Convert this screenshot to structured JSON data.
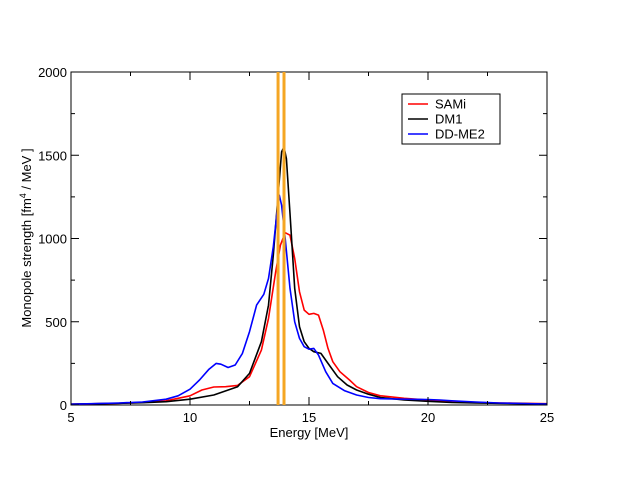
{
  "chart_data": {
    "type": "line",
    "title": "",
    "xlabel": "Energy [MeV]",
    "ylabel_prefix": "Monopole strength [fm",
    "ylabel_sup": "4",
    "ylabel_suffix": " / MeV ]",
    "xlim": [
      5,
      25
    ],
    "ylim": [
      0,
      2000
    ],
    "xticks": [
      5,
      10,
      15,
      20,
      25
    ],
    "yticks": [
      0,
      500,
      1000,
      1500,
      2000
    ],
    "xtick_labels": [
      "5",
      "10",
      "15",
      "20",
      "25"
    ],
    "ytick_labels": [
      "0",
      "500",
      "1000",
      "1500",
      "2000"
    ],
    "legend_position": "top-right",
    "series": [
      {
        "name": "SAMi",
        "color": "#ff0000",
        "points": [
          [
            5,
            5
          ],
          [
            7,
            10
          ],
          [
            8,
            15
          ],
          [
            9,
            25
          ],
          [
            10,
            55
          ],
          [
            10.5,
            90
          ],
          [
            11,
            108
          ],
          [
            11.5,
            110
          ],
          [
            12,
            118
          ],
          [
            12.5,
            170
          ],
          [
            13,
            330
          ],
          [
            13.3,
            520
          ],
          [
            13.6,
            800
          ],
          [
            13.8,
            960
          ],
          [
            14,
            1035
          ],
          [
            14.2,
            1020
          ],
          [
            14.4,
            880
          ],
          [
            14.6,
            680
          ],
          [
            14.8,
            570
          ],
          [
            15,
            545
          ],
          [
            15.2,
            550
          ],
          [
            15.4,
            540
          ],
          [
            15.6,
            450
          ],
          [
            15.8,
            340
          ],
          [
            16,
            260
          ],
          [
            16.3,
            200
          ],
          [
            16.7,
            150
          ],
          [
            17,
            110
          ],
          [
            17.5,
            75
          ],
          [
            18,
            55
          ],
          [
            19,
            40
          ],
          [
            20,
            30
          ],
          [
            21,
            20
          ],
          [
            22,
            15
          ],
          [
            23,
            12
          ],
          [
            24,
            10
          ],
          [
            25,
            8
          ]
        ]
      },
      {
        "name": "DM1",
        "color": "#000000",
        "points": [
          [
            5,
            5
          ],
          [
            7,
            10
          ],
          [
            8,
            14
          ],
          [
            9,
            20
          ],
          [
            10,
            35
          ],
          [
            11,
            60
          ],
          [
            12,
            110
          ],
          [
            12.5,
            190
          ],
          [
            13,
            380
          ],
          [
            13.3,
            600
          ],
          [
            13.5,
            900
          ],
          [
            13.7,
            1260
          ],
          [
            13.85,
            1520
          ],
          [
            13.95,
            1550
          ],
          [
            14.05,
            1480
          ],
          [
            14.2,
            1150
          ],
          [
            14.4,
            700
          ],
          [
            14.6,
            470
          ],
          [
            14.8,
            380
          ],
          [
            15,
            340
          ],
          [
            15.2,
            320
          ],
          [
            15.5,
            310
          ],
          [
            15.8,
            250
          ],
          [
            16.2,
            170
          ],
          [
            16.6,
            120
          ],
          [
            17,
            90
          ],
          [
            17.5,
            65
          ],
          [
            18,
            45
          ],
          [
            19,
            30
          ],
          [
            20,
            22
          ],
          [
            21,
            15
          ],
          [
            22,
            12
          ],
          [
            23,
            10
          ],
          [
            24,
            8
          ],
          [
            25,
            6
          ]
        ]
      },
      {
        "name": "DD-ME2",
        "color": "#0000ff",
        "points": [
          [
            5,
            5
          ],
          [
            7,
            12
          ],
          [
            8,
            18
          ],
          [
            9,
            35
          ],
          [
            9.5,
            55
          ],
          [
            10,
            95
          ],
          [
            10.4,
            150
          ],
          [
            10.8,
            215
          ],
          [
            11.1,
            250
          ],
          [
            11.3,
            245
          ],
          [
            11.6,
            225
          ],
          [
            11.9,
            240
          ],
          [
            12.2,
            310
          ],
          [
            12.5,
            440
          ],
          [
            12.8,
            600
          ],
          [
            13.1,
            665
          ],
          [
            13.3,
            760
          ],
          [
            13.5,
            950
          ],
          [
            13.65,
            1150
          ],
          [
            13.75,
            1260
          ],
          [
            13.85,
            1200
          ],
          [
            14,
            1000
          ],
          [
            14.2,
            700
          ],
          [
            14.4,
            500
          ],
          [
            14.6,
            400
          ],
          [
            14.8,
            350
          ],
          [
            15,
            335
          ],
          [
            15.2,
            340
          ],
          [
            15.4,
            300
          ],
          [
            15.7,
            200
          ],
          [
            16,
            130
          ],
          [
            16.5,
            85
          ],
          [
            17,
            60
          ],
          [
            17.5,
            45
          ],
          [
            18,
            38
          ],
          [
            19,
            35
          ],
          [
            20,
            33
          ],
          [
            20.5,
            30
          ],
          [
            21,
            25
          ],
          [
            22,
            18
          ],
          [
            23,
            12
          ],
          [
            24,
            9
          ],
          [
            25,
            6
          ]
        ]
      }
    ],
    "vertical_lines": [
      {
        "x": 13.7,
        "color": "#f5a623"
      },
      {
        "x": 13.95,
        "color": "#f5a623"
      }
    ]
  }
}
